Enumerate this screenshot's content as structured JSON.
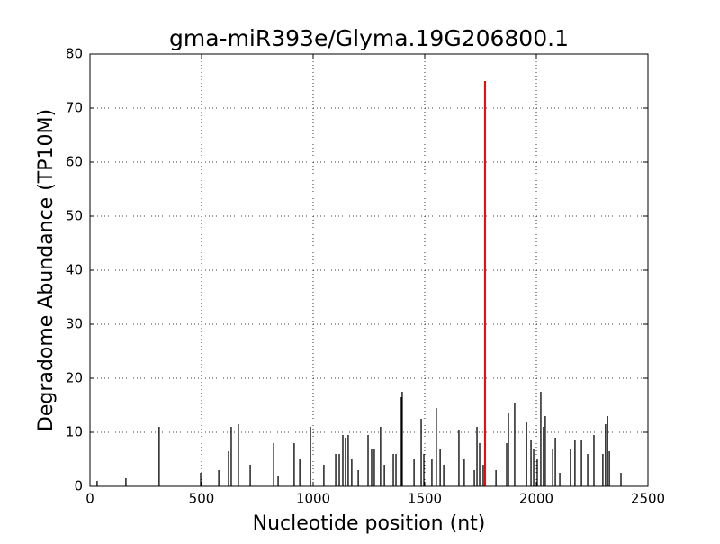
{
  "chart_data": {
    "type": "stem",
    "title": "gma-miR393e/Glyma.19G206800.1",
    "x_label": "Nucleotide position (nt)",
    "y_label": "Degradome Abundance (TP10M)",
    "xlim": [
      0,
      2500
    ],
    "xticks": [
      0,
      500,
      1000,
      1500,
      2000,
      2500
    ],
    "ylim": [
      0,
      80
    ],
    "yticks": [
      0,
      10,
      20,
      30,
      40,
      50,
      60,
      70,
      80
    ],
    "grid": true,
    "series": [
      {
        "color": "#000000",
        "x": [
          32,
          161,
          310,
          496,
          577,
          621,
          633,
          665,
          718,
          823,
          843,
          915,
          940,
          988,
          1048,
          1101,
          1117,
          1133,
          1145,
          1157,
          1173,
          1202,
          1246,
          1262,
          1274,
          1302,
          1319,
          1359,
          1371,
          1395,
          1399,
          1452,
          1484,
          1496,
          1532,
          1552,
          1569,
          1585,
          1653,
          1677,
          1722,
          1734,
          1746,
          1762,
          1819,
          1867,
          1875,
          1903,
          1956,
          1976,
          1988,
          2004,
          2020,
          2032,
          2040,
          2073,
          2085,
          2105,
          2153,
          2173,
          2202,
          2230,
          2258,
          2298,
          2310,
          2319,
          2327,
          2379
        ],
        "values": [
          1,
          1.5,
          11,
          2.5,
          3,
          6.5,
          11,
          11.5,
          4,
          8,
          2,
          8,
          5,
          11,
          4,
          6,
          6,
          9.5,
          9,
          9.5,
          5,
          3,
          9.5,
          7,
          7,
          11,
          4,
          6,
          6,
          16.5,
          17.5,
          5,
          12.5,
          6,
          5,
          14.5,
          7,
          4,
          10.5,
          5,
          3,
          11,
          8,
          4,
          3,
          8,
          13.5,
          15.5,
          12,
          8.5,
          7,
          5,
          17.5,
          11,
          13,
          7,
          9,
          2.5,
          7,
          8.5,
          8.5,
          6,
          9.5,
          6,
          11.5,
          13,
          6.5,
          2.5
        ]
      },
      {
        "color": "#ff0000",
        "x": [
          1770
        ],
        "values": [
          75
        ]
      }
    ]
  }
}
